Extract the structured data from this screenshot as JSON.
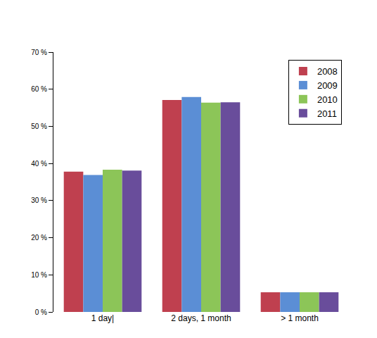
{
  "chart_data": {
    "type": "bar",
    "categories": [
      "1 day|",
      "2 days, 1 month",
      "> 1 month"
    ],
    "series": [
      {
        "name": "2008",
        "color": "#bf404f",
        "values": [
          37.8,
          57.1,
          5.3
        ]
      },
      {
        "name": "2009",
        "color": "#5b8ed5",
        "values": [
          36.9,
          57.9,
          5.3
        ]
      },
      {
        "name": "2010",
        "color": "#8cc558",
        "values": [
          38.3,
          56.4,
          5.3
        ]
      },
      {
        "name": "2011",
        "color": "#694d9b",
        "values": [
          38.1,
          56.5,
          5.3
        ]
      }
    ],
    "ylim": [
      0,
      70
    ],
    "yticks": [
      {
        "value": 0,
        "label": "0 %"
      },
      {
        "value": 10,
        "label": "10 %"
      },
      {
        "value": 20,
        "label": "20 %"
      },
      {
        "value": 30,
        "label": "30 %"
      },
      {
        "value": 40,
        "label": "40 %"
      },
      {
        "value": 50,
        "label": "50 %"
      },
      {
        "value": 60,
        "label": "60 %"
      },
      {
        "value": 70,
        "label": "70 %"
      }
    ],
    "grid": false,
    "legend": "top-right"
  }
}
